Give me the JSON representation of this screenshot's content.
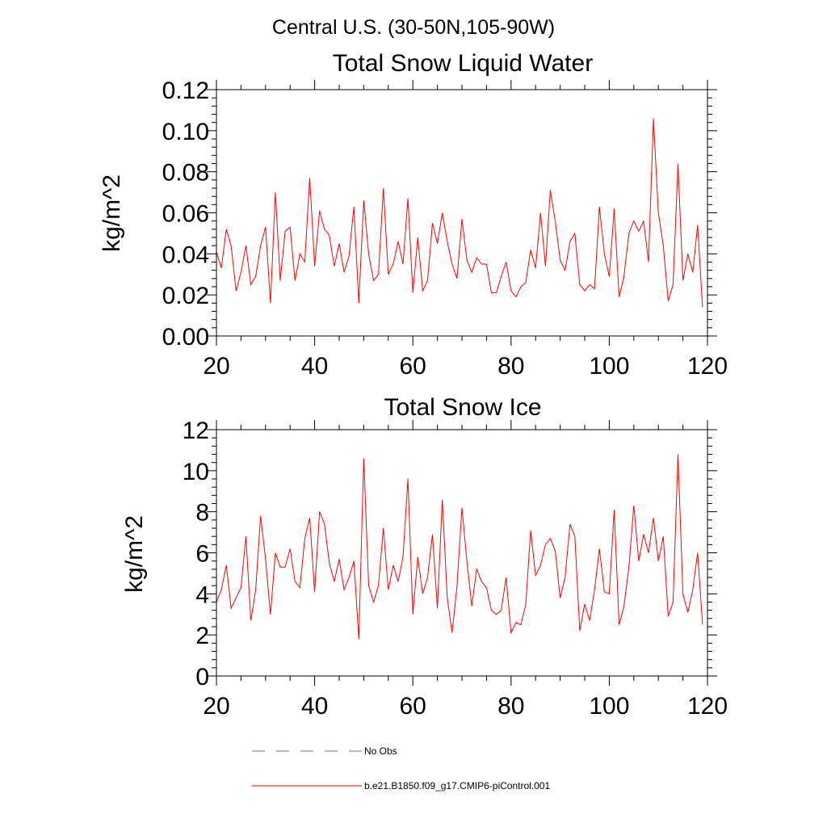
{
  "figure_title": "Central U.S. (30-50N,105-90W)",
  "legend": {
    "items": [
      {
        "label": "No Obs",
        "color": "#6670a8",
        "style": "dashed"
      },
      {
        "label": "b.e21.B1850.f09_g17.CMIP6-piControl.001",
        "color": "#ff0000",
        "style": "solid"
      }
    ]
  },
  "chart_data": [
    {
      "type": "line",
      "title": "Total Snow Liquid Water",
      "xlabel": "",
      "ylabel": "kg/m^2",
      "xlim": [
        20,
        120
      ],
      "ylim": [
        0,
        0.12
      ],
      "grid": false,
      "x_ticks": [
        20,
        40,
        60,
        80,
        100,
        120
      ],
      "x_tick_labels": [
        "20",
        "40",
        "60",
        "80",
        "100",
        "120"
      ],
      "y_ticks": [
        0,
        0.02,
        0.04,
        0.06,
        0.08,
        0.1,
        0.12
      ],
      "y_tick_labels": [
        "0.00",
        "0.02",
        "0.04",
        "0.06",
        "0.08",
        "0.10",
        "0.12"
      ],
      "x_start": 20,
      "x_step": 1,
      "series": [
        {
          "name": "b.e21.B1850.f09_g17.CMIP6-piControl.001",
          "color": "#ff0000",
          "values": [
            0.041,
            0.033,
            0.052,
            0.044,
            0.022,
            0.031,
            0.044,
            0.025,
            0.029,
            0.044,
            0.053,
            0.016,
            0.07,
            0.027,
            0.051,
            0.053,
            0.027,
            0.04,
            0.036,
            0.077,
            0.034,
            0.061,
            0.052,
            0.049,
            0.034,
            0.045,
            0.031,
            0.039,
            0.063,
            0.016,
            0.066,
            0.04,
            0.027,
            0.03,
            0.072,
            0.03,
            0.035,
            0.046,
            0.035,
            0.067,
            0.021,
            0.048,
            0.022,
            0.027,
            0.055,
            0.045,
            0.06,
            0.046,
            0.035,
            0.028,
            0.057,
            0.037,
            0.031,
            0.038,
            0.035,
            0.035,
            0.021,
            0.021,
            0.029,
            0.036,
            0.022,
            0.019,
            0.024,
            0.026,
            0.042,
            0.033,
            0.06,
            0.034,
            0.071,
            0.056,
            0.037,
            0.032,
            0.046,
            0.05,
            0.025,
            0.022,
            0.025,
            0.023,
            0.063,
            0.04,
            0.029,
            0.062,
            0.019,
            0.029,
            0.05,
            0.056,
            0.051,
            0.056,
            0.036,
            0.106,
            0.06,
            0.044,
            0.017,
            0.025,
            0.084,
            0.027,
            0.04,
            0.031,
            0.054,
            0.014
          ]
        }
      ]
    },
    {
      "type": "line",
      "title": "Total Snow Ice",
      "xlabel": "",
      "ylabel": "kg/m^2",
      "xlim": [
        20,
        120
      ],
      "ylim": [
        0,
        12
      ],
      "grid": false,
      "x_ticks": [
        20,
        40,
        60,
        80,
        100,
        120
      ],
      "x_tick_labels": [
        "20",
        "40",
        "60",
        "80",
        "100",
        "120"
      ],
      "y_ticks": [
        0,
        2,
        4,
        6,
        8,
        10,
        12
      ],
      "y_tick_labels": [
        "0",
        "2",
        "4",
        "6",
        "8",
        "10",
        "12"
      ],
      "x_start": 20,
      "x_step": 1,
      "series": [
        {
          "name": "b.e21.B1850.f09_g17.CMIP6-piControl.001",
          "color": "#ff0000",
          "values": [
            3.6,
            4.2,
            5.4,
            3.3,
            3.8,
            4.3,
            6.8,
            2.7,
            4.2,
            7.8,
            5.7,
            3.0,
            6.0,
            5.3,
            5.3,
            6.2,
            4.6,
            4.3,
            6.7,
            7.7,
            4.1,
            8.0,
            7.4,
            5.5,
            4.6,
            5.7,
            4.2,
            4.8,
            5.6,
            1.8,
            10.6,
            4.4,
            3.6,
            4.4,
            7.2,
            4.2,
            5.4,
            4.6,
            5.8,
            9.6,
            3.0,
            5.8,
            4.0,
            4.8,
            6.9,
            3.3,
            8.6,
            3.8,
            2.1,
            4.4,
            8.2,
            5.6,
            3.4,
            5.2,
            4.6,
            4.3,
            3.2,
            3.0,
            3.2,
            4.8,
            2.1,
            2.6,
            2.5,
            3.5,
            7.1,
            4.9,
            5.4,
            6.4,
            6.7,
            6.1,
            3.8,
            4.8,
            7.4,
            6.8,
            2.2,
            3.5,
            2.7,
            4.2,
            6.2,
            4.1,
            4.0,
            8.1,
            2.5,
            3.4,
            5.3,
            8.3,
            5.6,
            6.9,
            6.0,
            7.7,
            5.6,
            6.8,
            2.9,
            3.6,
            10.8,
            4.0,
            3.1,
            4.2,
            6.0,
            2.5
          ]
        }
      ]
    }
  ]
}
